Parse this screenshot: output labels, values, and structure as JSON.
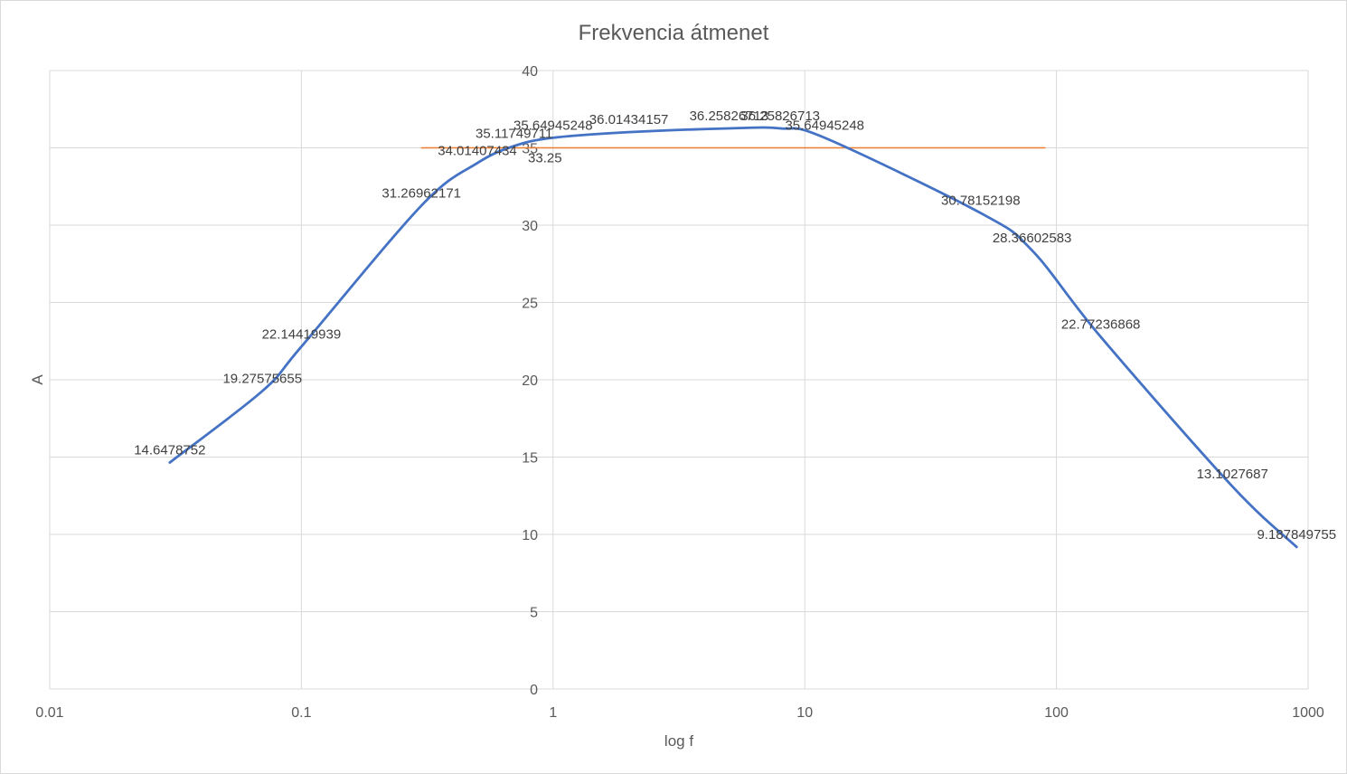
{
  "chart_data": {
    "type": "line",
    "title": "Frekvencia átmenet",
    "xlabel": "log f",
    "ylabel": "A",
    "x_scale": "log",
    "xlim": [
      0.01,
      1000
    ],
    "ylim": [
      0,
      40
    ],
    "x_ticks": [
      "0.01",
      "0.1",
      "1",
      "10",
      "100",
      "1000"
    ],
    "y_ticks": [
      "0",
      "5",
      "10",
      "15",
      "20",
      "25",
      "30",
      "35",
      "40"
    ],
    "grid": true,
    "legend": "none",
    "series": [
      {
        "color": "#4472C4",
        "smooth": true,
        "points": [
          {
            "x": 0.03,
            "y": 14.6478752,
            "label": "14.6478752"
          },
          {
            "x": 0.07,
            "y": 19.27575655,
            "label": "19.27575655"
          },
          {
            "x": 0.1,
            "y": 22.14419939,
            "label": "22.14419939"
          },
          {
            "x": 0.3,
            "y": 31.26962171,
            "label": "31.26962171"
          },
          {
            "x": 0.5,
            "y": 34.01407434,
            "label": "34.01407434"
          },
          {
            "x": 0.7,
            "y": 35.11749711,
            "label": "35.11749711"
          },
          {
            "x": 1,
            "y": 35.64945248,
            "label": "35.64945248"
          },
          {
            "x": 2,
            "y": 36.01434157,
            "label": "36.01434157"
          },
          {
            "x": 5,
            "y": 36.25826713,
            "label": "36.25826713"
          },
          {
            "x": 8,
            "y": 36.25826713,
            "label": "36.25826713"
          },
          {
            "x": 12,
            "y": 35.64945248,
            "label": "35.64945248"
          },
          {
            "x": 50,
            "y": 30.78152198,
            "label": "30.78152198"
          },
          {
            "x": 80,
            "y": 28.36602583,
            "label": "28.36602583"
          },
          {
            "x": 150,
            "y": 22.77236868,
            "label": "22.77236868"
          },
          {
            "x": 500,
            "y": 13.1027687,
            "label": "13.1027687"
          },
          {
            "x": 900,
            "y": 9.187849755,
            "label": "9.187849755"
          }
        ]
      },
      {
        "color": "#ED7D31",
        "smooth": false,
        "points": [
          {
            "x": 0.3,
            "y": 35.0,
            "label": ""
          },
          {
            "x": 0.8,
            "y": 35.0,
            "label": "33.25"
          },
          {
            "x": 90,
            "y": 35.0,
            "label": ""
          }
        ]
      }
    ]
  }
}
